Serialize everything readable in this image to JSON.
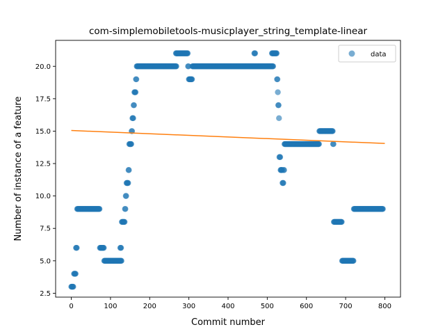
{
  "chart_data": {
    "type": "scatter",
    "title": "com-simplemobiletools-musicplayer_string_template-linear",
    "xlabel": "Commit number",
    "ylabel": "Number of instance of a feature",
    "xlim": [
      -40,
      840
    ],
    "ylim": [
      2.2,
      22.0
    ],
    "xticks": [
      0,
      100,
      200,
      300,
      400,
      500,
      600,
      700,
      800
    ],
    "yticks": [
      2.5,
      5.0,
      7.5,
      10.0,
      12.5,
      15.0,
      17.5,
      20.0
    ],
    "ytick_labels": [
      "2.5",
      "5.0",
      "7.5",
      "10.0",
      "12.5",
      "15.0",
      "17.5",
      "20.0"
    ],
    "legend": {
      "position": "top-right",
      "entries": [
        "data"
      ]
    },
    "colors": {
      "data": "#1f77b4",
      "fit": "#ff7f0e"
    },
    "fit_line": {
      "x": [
        0,
        800
      ],
      "y": [
        15.05,
        14.05
      ]
    },
    "series": [
      {
        "name": "data",
        "segments": [
          {
            "x_start": 0,
            "x_end": 5,
            "y": 3
          },
          {
            "x_start": 7,
            "x_end": 11,
            "y": 4
          },
          {
            "x_start": 12,
            "x_end": 14,
            "y": 6
          },
          {
            "x_start": 15,
            "x_end": 72,
            "y": 9
          },
          {
            "x_start": 73,
            "x_end": 83,
            "y": 6
          },
          {
            "x_start": 84,
            "x_end": 128,
            "y": 5
          },
          {
            "x_start": 125,
            "x_end": 127,
            "y": 6
          },
          {
            "x_start": 129,
            "x_end": 136,
            "y": 8
          },
          {
            "x_start": 137,
            "x_end": 138,
            "y": 9
          },
          {
            "x_start": 139,
            "x_end": 140,
            "y": 10
          },
          {
            "x_start": 141,
            "x_end": 145,
            "y": 11
          },
          {
            "x_start": 146,
            "x_end": 147,
            "y": 12
          },
          {
            "x_start": 148,
            "x_end": 153,
            "y": 14
          },
          {
            "x_start": 154,
            "x_end": 155,
            "y": 15
          },
          {
            "x_start": 156,
            "x_end": 158,
            "y": 16
          },
          {
            "x_start": 159,
            "x_end": 160,
            "y": 17
          },
          {
            "x_start": 161,
            "x_end": 164,
            "y": 18
          },
          {
            "x_start": 165,
            "x_end": 166,
            "y": 19
          },
          {
            "x_start": 167,
            "x_end": 268,
            "y": 20
          },
          {
            "x_start": 267,
            "x_end": 297,
            "y": 21
          },
          {
            "x_start": 298,
            "x_end": 299,
            "y": 20
          },
          {
            "x_start": 300,
            "x_end": 308,
            "y": 19
          },
          {
            "x_start": 309,
            "x_end": 515,
            "y": 20
          },
          {
            "x_start": 467,
            "x_end": 469,
            "y": 21
          },
          {
            "x_start": 512,
            "x_end": 524,
            "y": 21
          },
          {
            "x_start": 525,
            "x_end": 526,
            "y": 19
          },
          {
            "x_start": 527,
            "x_end": 527,
            "y": 18
          },
          {
            "x_start": 528,
            "x_end": 529,
            "y": 17
          },
          {
            "x_start": 530,
            "x_end": 530,
            "y": 16
          },
          {
            "x_start": 531,
            "x_end": 533,
            "y": 13
          },
          {
            "x_start": 534,
            "x_end": 538,
            "y": 12
          },
          {
            "x_start": 539,
            "x_end": 541,
            "y": 11
          },
          {
            "x_start": 542,
            "x_end": 543,
            "y": 12
          },
          {
            "x_start": 544,
            "x_end": 632,
            "y": 14
          },
          {
            "x_start": 633,
            "x_end": 667,
            "y": 15
          },
          {
            "x_start": 668,
            "x_end": 669,
            "y": 14
          },
          {
            "x_start": 670,
            "x_end": 690,
            "y": 8
          },
          {
            "x_start": 691,
            "x_end": 720,
            "y": 5
          },
          {
            "x_start": 721,
            "x_end": 795,
            "y": 9
          }
        ]
      }
    ]
  }
}
